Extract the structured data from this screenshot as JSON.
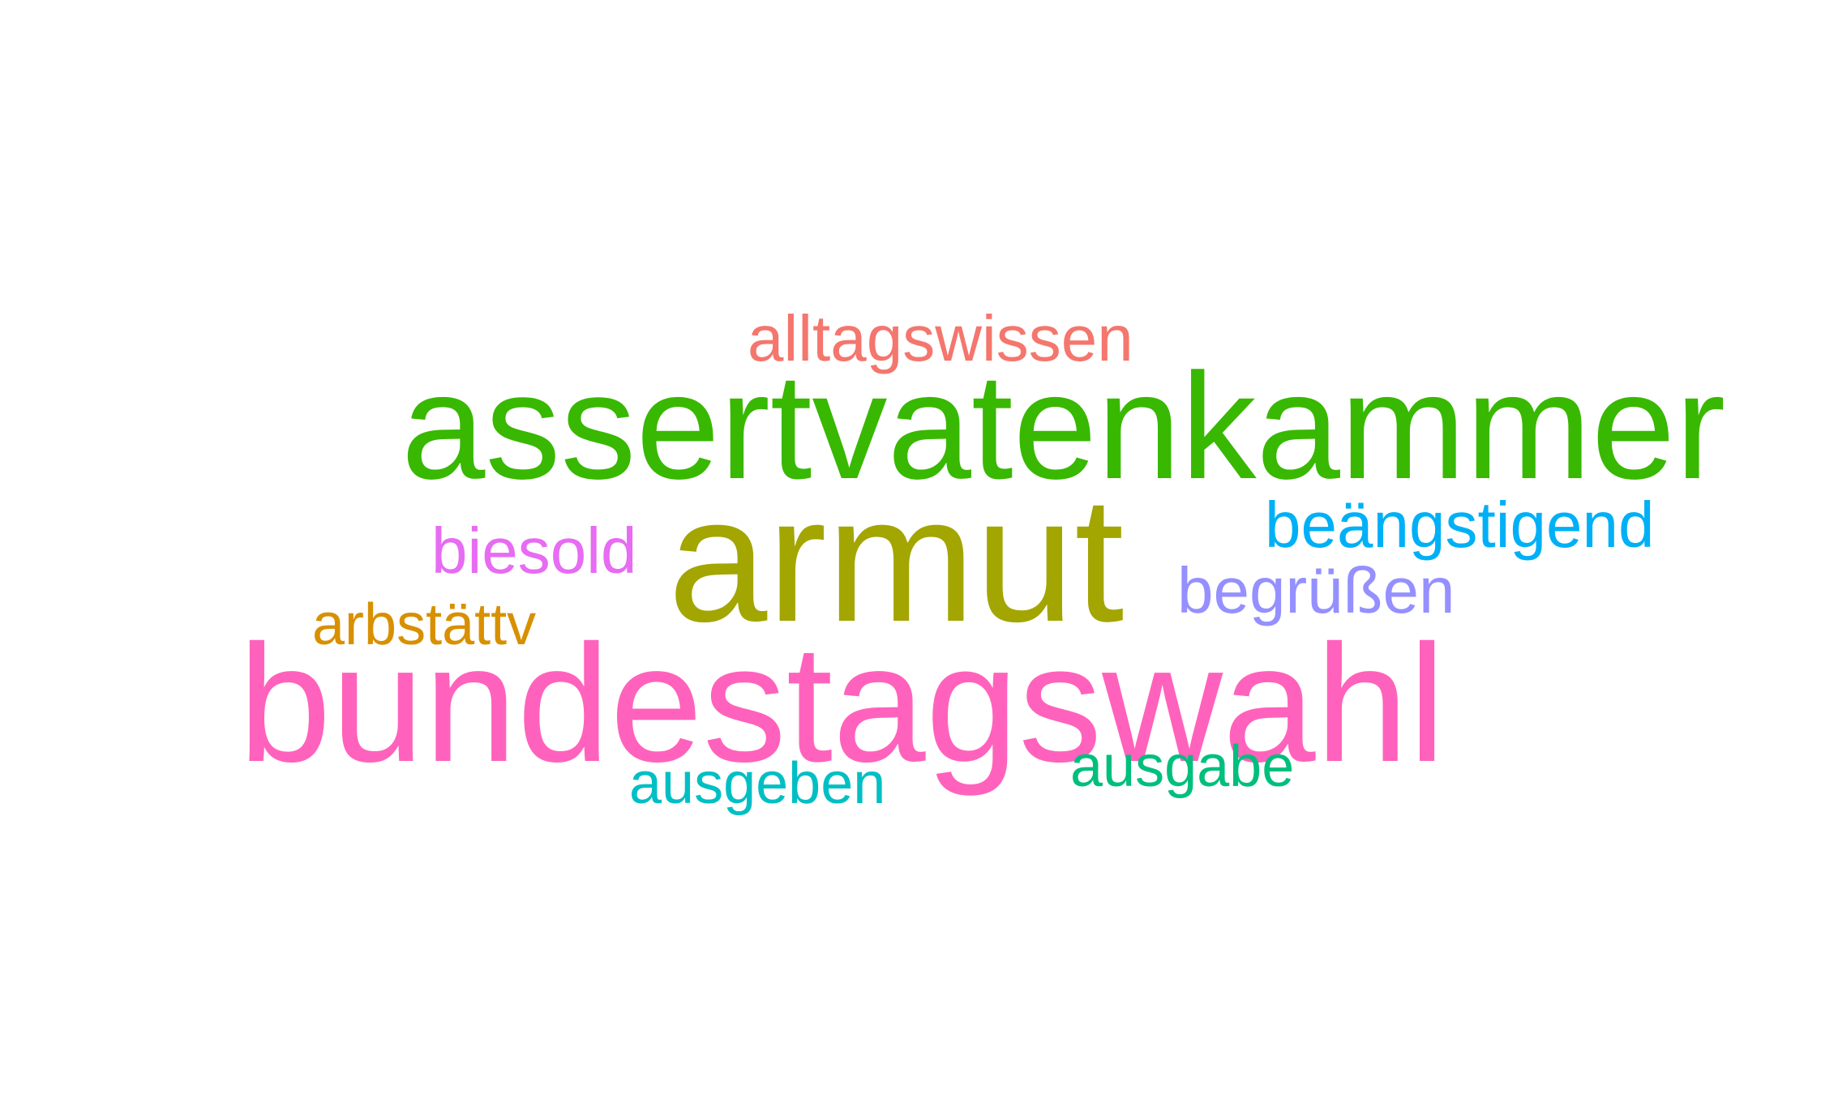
{
  "word_cloud": {
    "background": "#ffffff",
    "words": [
      {
        "id": "alltagswissen",
        "text": "alltagswissen",
        "color": "#f4766d"
      },
      {
        "id": "asservatenkammer",
        "text": "assertvatenkammer",
        "color": "#38b800"
      },
      {
        "id": "armut",
        "text": "armut",
        "color": "#a3a500"
      },
      {
        "id": "beangstigend",
        "text": "beängstigend",
        "color": "#00b0f6"
      },
      {
        "id": "biesold",
        "text": "biesold",
        "color": "#e76bf3"
      },
      {
        "id": "begrussen",
        "text": "begrüßen",
        "color": "#9590ff"
      },
      {
        "id": "arbstattv",
        "text": "arbstättv",
        "color": "#d89000"
      },
      {
        "id": "bundestagswahl",
        "text": "bundestagswahl",
        "color": "#ff62bc"
      },
      {
        "id": "ausgabe",
        "text": "ausgabe",
        "color": "#00bf7d"
      },
      {
        "id": "ausgeben",
        "text": "ausgeben",
        "color": "#00bfc4"
      }
    ]
  }
}
